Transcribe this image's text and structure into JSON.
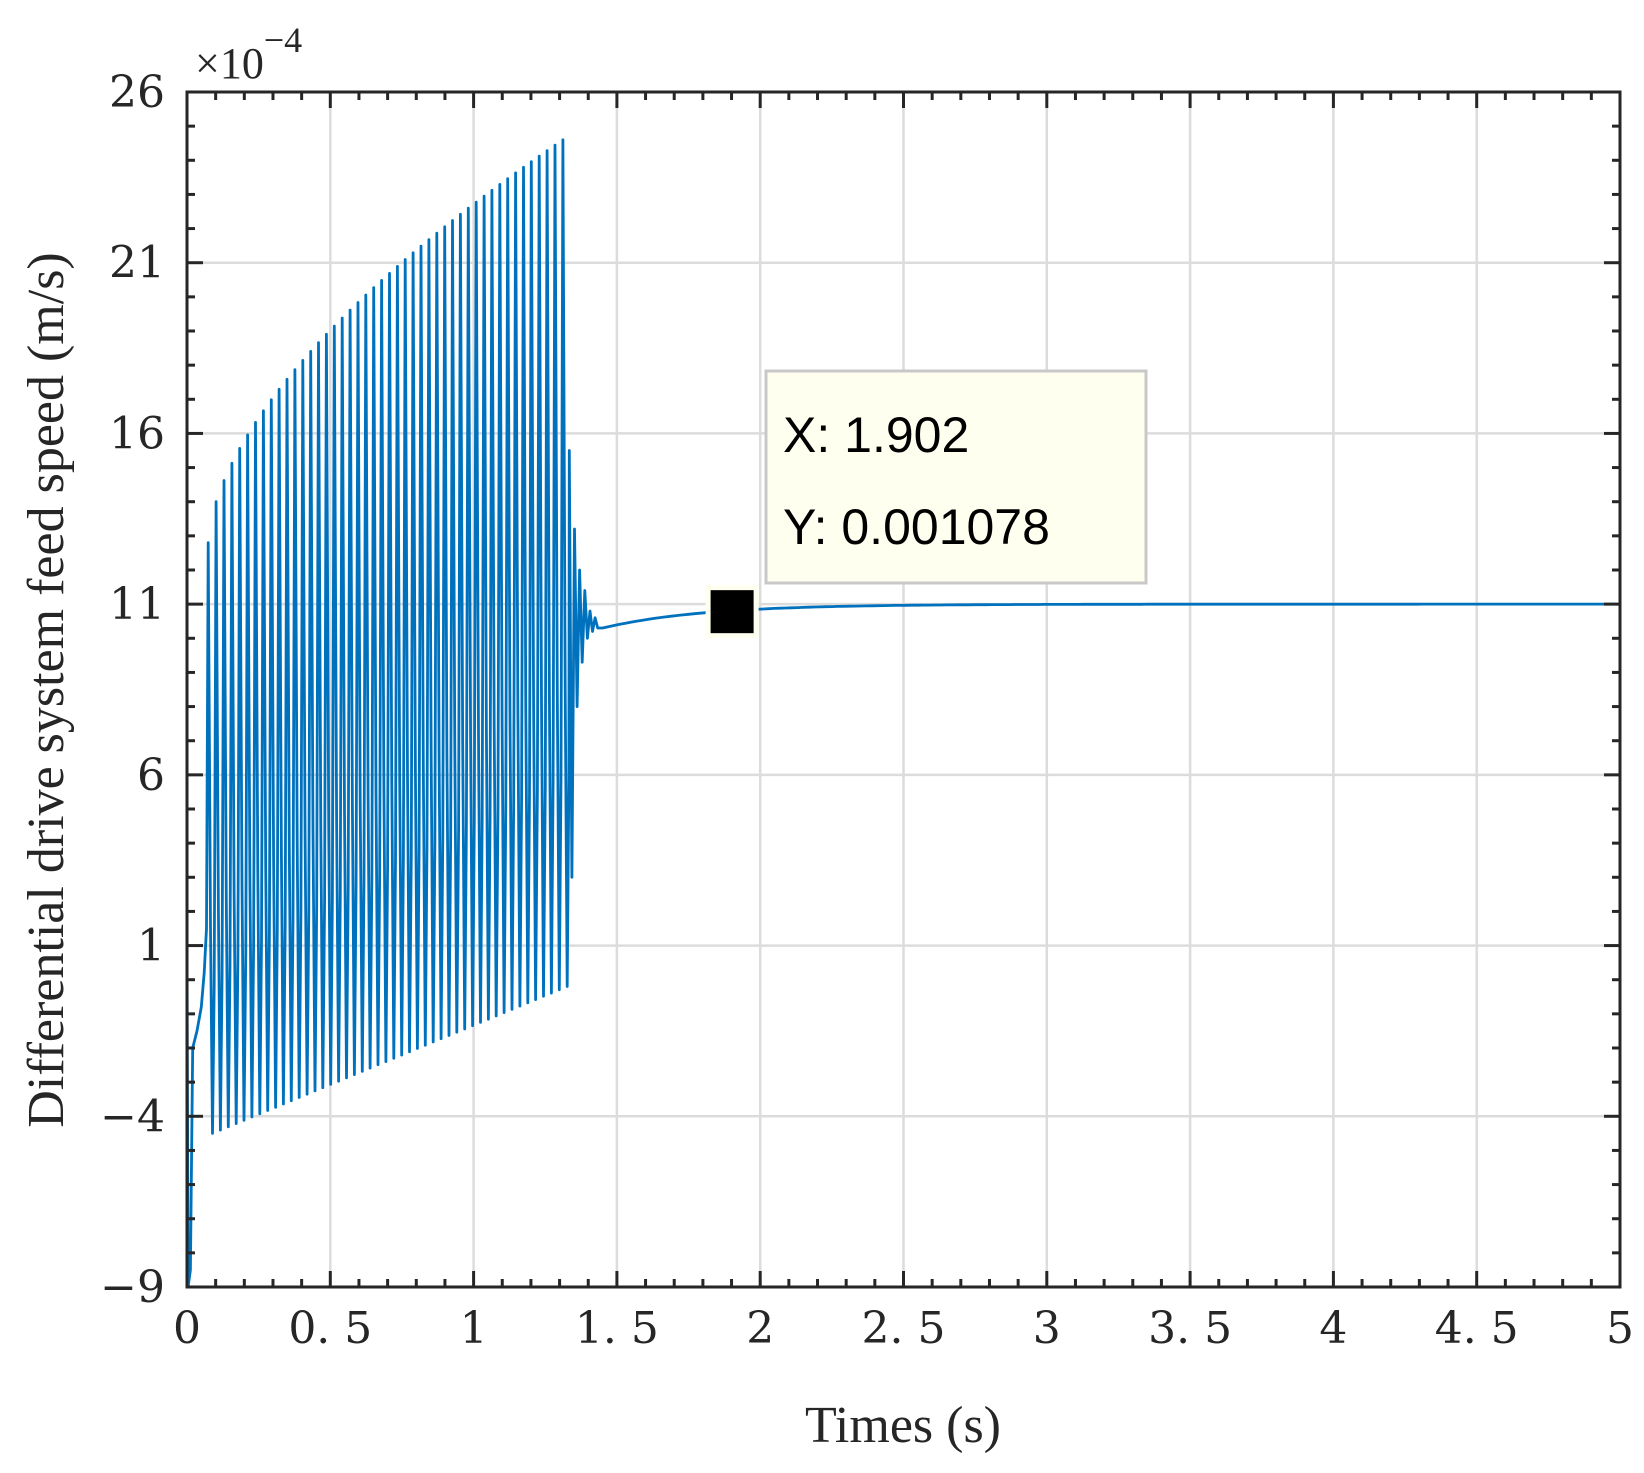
{
  "chart_data": {
    "type": "line",
    "title": "",
    "xlabel": "Times (s)",
    "ylabel": "Differential drive system feed speed (m/s)",
    "y_exponent_base": "×10",
    "y_exponent_power": "−4",
    "xlim": [
      0,
      5
    ],
    "ylim": [
      -9,
      26
    ],
    "x_ticks": [
      0,
      0.5,
      1,
      1.5,
      2,
      2.5,
      3,
      3.5,
      4,
      4.5,
      5
    ],
    "x_tick_labels": [
      "0",
      "0. 5",
      "1",
      "1. 5",
      "2",
      "2. 5",
      "3",
      "3. 5",
      "4",
      "4. 5",
      "5"
    ],
    "y_ticks": [
      -9,
      -4,
      1,
      6,
      11,
      16,
      21,
      26
    ],
    "y_tick_labels": [
      "−9",
      "−4",
      "1",
      "6",
      "11",
      "16",
      "21",
      "26"
    ],
    "grid": true,
    "series": [
      {
        "color": "#0072BD",
        "description_points": {
          "x": [
            0,
            0.01,
            0.03,
            0.06,
            0.09,
            0.12,
            0.2,
            0.3,
            0.4,
            0.5,
            0.6,
            0.7,
            0.8,
            0.9,
            1.0,
            1.1,
            1.2,
            1.3,
            1.33,
            1.35,
            1.37,
            1.38,
            1.4,
            1.45,
            1.5,
            1.6,
            1.7,
            1.8,
            1.902,
            2.0,
            2.5,
            3.0,
            3.5,
            4.0,
            4.5,
            5.0
          ],
          "y": [
            1,
            -9,
            -2,
            0.5,
            -4.5,
            14.8,
            15.8,
            17.5,
            19.3,
            20.3,
            20.9,
            21.6,
            22.6,
            23.4,
            23.8,
            24.1,
            24.3,
            24.6,
            15.5,
            8.5,
            12,
            10,
            11,
            10.2,
            10.5,
            10.8,
            10.9,
            10.85,
            10.78,
            10.9,
            11.0,
            11.0,
            11.0,
            11.0,
            11.0,
            11.0
          ]
        }
      }
    ],
    "oscillation": {
      "t_start": 0.07,
      "t_end": 1.33,
      "period": 0.0275,
      "max_start": 12.8,
      "max_end": 24.6,
      "min_start": -4.5,
      "min_end": -0.2
    },
    "settle": {
      "t_start": 1.33,
      "t_end": 1.45,
      "final_value": 11.0
    },
    "datatip": {
      "x_label": "X: 1.902",
      "y_label": "Y: 0.001078",
      "x": 1.902,
      "y": 10.78
    }
  }
}
